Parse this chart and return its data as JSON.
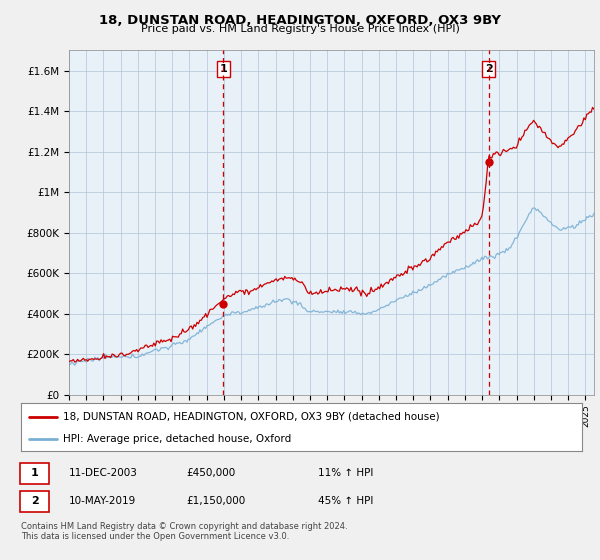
{
  "title": "18, DUNSTAN ROAD, HEADINGTON, OXFORD, OX3 9BY",
  "subtitle": "Price paid vs. HM Land Registry's House Price Index (HPI)",
  "ylim": [
    0,
    1700000
  ],
  "yticks": [
    0,
    200000,
    400000,
    600000,
    800000,
    1000000,
    1200000,
    1400000,
    1600000
  ],
  "ytick_labels": [
    "£0",
    "£200K",
    "£400K",
    "£600K",
    "£800K",
    "£1M",
    "£1.2M",
    "£1.4M",
    "£1.6M"
  ],
  "legend_line1": "18, DUNSTAN ROAD, HEADINGTON, OXFORD, OX3 9BY (detached house)",
  "legend_line2": "HPI: Average price, detached house, Oxford",
  "transaction1_date": "11-DEC-2003",
  "transaction1_price": "£450,000",
  "transaction1_hpi": "11% ↑ HPI",
  "transaction1_year": 2003.958,
  "transaction1_value": 450000,
  "transaction2_date": "10-MAY-2019",
  "transaction2_price": "£1,150,000",
  "transaction2_hpi": "45% ↑ HPI",
  "transaction2_year": 2019.375,
  "transaction2_value": 1150000,
  "footer": "Contains HM Land Registry data © Crown copyright and database right 2024.\nThis data is licensed under the Open Government Licence v3.0.",
  "line_color_red": "#cc0000",
  "line_color_blue": "#7ab0d4",
  "vline_color": "#cc0000",
  "bg_color": "#f0f0f0",
  "plot_bg": "#ddeeff",
  "plot_bg_light": "#e8f0f8",
  "grid_color": "#b0c4d8"
}
